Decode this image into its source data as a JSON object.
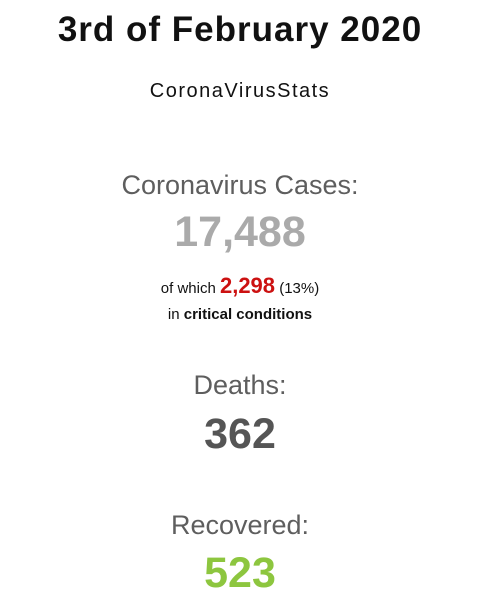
{
  "header": {
    "date_title": "3rd of February 2020",
    "site_name": "CoronaVirusStats"
  },
  "cases": {
    "label": "Coronavirus Cases:",
    "value": "17,488",
    "critical_prefix": "of which",
    "critical_value": "2,298",
    "critical_percent": "(13%)",
    "critical_line2_prefix": "in",
    "critical_line2_bold": "critical conditions"
  },
  "deaths": {
    "label": "Deaths:",
    "value": "362"
  },
  "recovered": {
    "label": "Recovered:",
    "value": "523"
  },
  "colors": {
    "cases_number": "#aaaaaa",
    "critical_number": "#cc1111",
    "deaths_number": "#555555",
    "recovered_number": "#8dc63f"
  }
}
